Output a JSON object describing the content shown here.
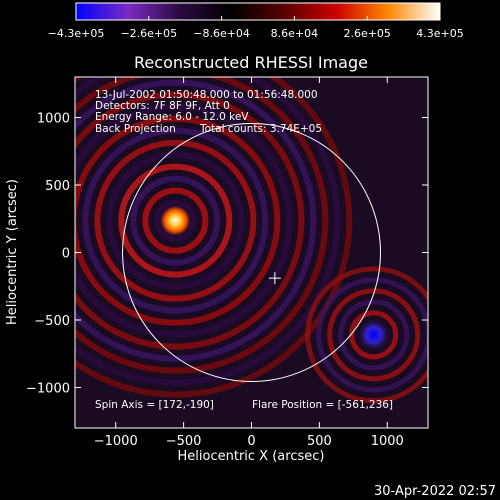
{
  "chart_data": {
    "type": "heatmap",
    "title": "Reconstructed RHESSI Image",
    "xlabel": "Heliocentric X (arcsec)",
    "ylabel": "Heliocentric Y (arcsec)",
    "xlim": [
      -1300,
      1300
    ],
    "ylim": [
      -1300,
      1300
    ],
    "xticks": [
      -1000,
      -500,
      0,
      500,
      1000
    ],
    "xtick_labels": [
      "−1000",
      "−500",
      "0",
      "500",
      "1000"
    ],
    "yticks": [
      -1000,
      -500,
      0,
      500,
      1000
    ],
    "ytick_labels": [
      "−1000",
      "−500",
      "0",
      "500",
      "1000"
    ],
    "colorbar": {
      "min": -430000,
      "max": 430000,
      "tick_labels": [
        "−4.3e+05",
        "−2.6e+05",
        "−8.6e+04",
        "8.6e+04",
        "2.6e+05",
        "4.3e+05"
      ],
      "stops": [
        "#0000ff",
        "#7a2cc4",
        "#2a0a40",
        "#000000",
        "#5a0000",
        "#cc0000",
        "#ff8800",
        "#ffffff"
      ]
    },
    "annotations": [
      "13-Jul-2002 01:50:48.000 to 01:56:48.000",
      "Detectors: 7F 8F 9F, Att 0",
      "Energy Range: 6.0 - 12.0 keV",
      "Back Projection",
      "Total counts: 3.74E+05"
    ],
    "spin_axis_label": "Spin Axis = [172,-190]",
    "flare_position_label": "Flare Position = [-561,236]",
    "solar_radius": 950,
    "flare_position": [
      -561,
      236
    ],
    "spin_axis": [
      172,
      -190
    ],
    "negative_source": [
      900,
      -610
    ]
  },
  "timestamp": "30-Apr-2022 02:57"
}
